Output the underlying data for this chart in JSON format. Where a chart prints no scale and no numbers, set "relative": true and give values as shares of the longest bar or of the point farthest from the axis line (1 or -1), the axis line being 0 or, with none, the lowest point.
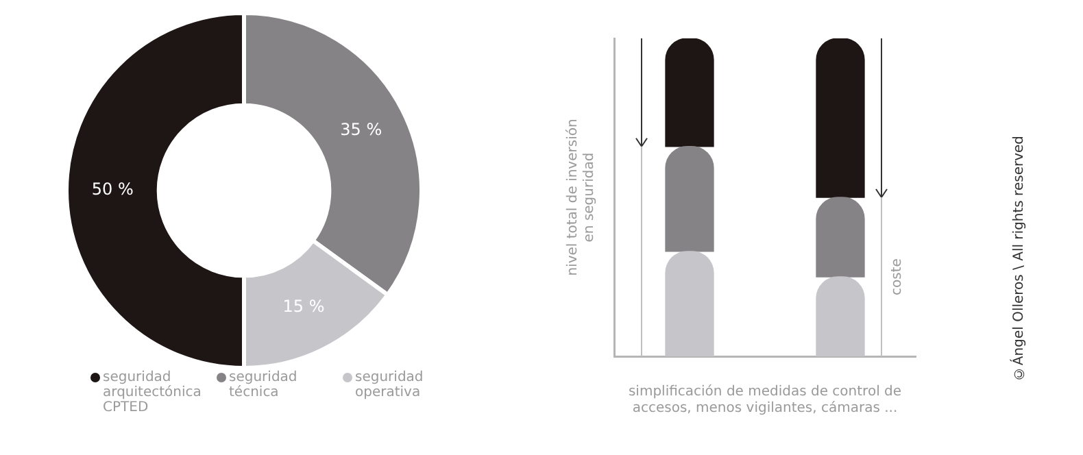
{
  "chart_data": [
    {
      "type": "donut",
      "categories": [
        "seguridad arquitectónica CPTED",
        "seguridad técnica",
        "seguridad operativa"
      ],
      "values": [
        50,
        35,
        15
      ],
      "colors": [
        "#1e1614",
        "#858386",
        "#c6c5ca"
      ],
      "value_labels": [
        "50 %",
        "35 %",
        "15 %"
      ],
      "legend": "bottom"
    },
    {
      "type": "bar",
      "stacked": true,
      "relative": true,
      "categories": [
        null,
        null
      ],
      "series": [
        {
          "color": "#c6c5ca",
          "values": [
            0.33,
            0.25
          ]
        },
        {
          "color": "#858386",
          "values": [
            0.33,
            0.25
          ]
        },
        {
          "color": "#1e1614",
          "values": [
            0.34,
            0.5
          ]
        }
      ],
      "xlabel": "simplificación de medidas de control de accesos, menos vigilantes, cámaras ...",
      "ylabel": "nivel total de inversión en seguridad",
      "annotations": [
        "coste",
        "©Ángel Olleros \\ All rights reserved"
      ]
    }
  ]
}
